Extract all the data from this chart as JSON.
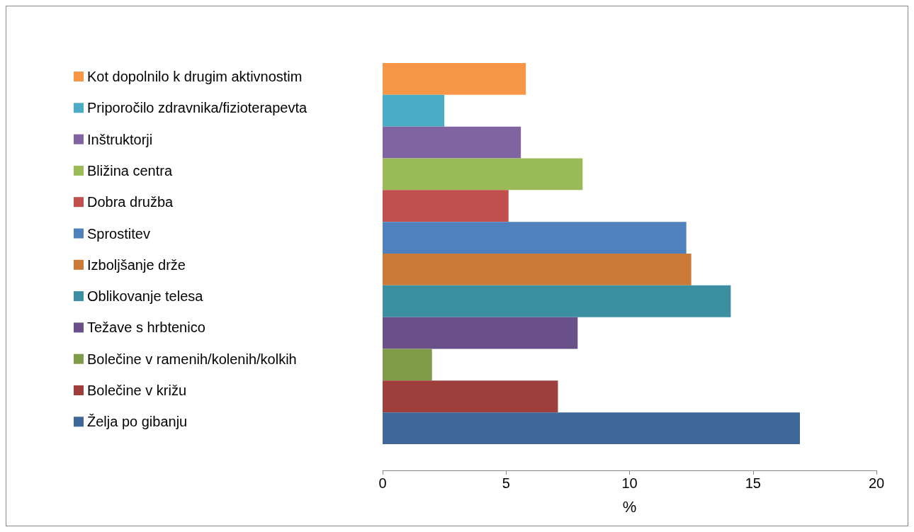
{
  "chart_data": {
    "type": "bar",
    "orientation": "horizontal",
    "xlabel": "%",
    "categories": [
      null
    ],
    "series": [
      {
        "name": "Kot dopolnilo k drugim aktivnostim",
        "color": "#f79646",
        "values": [
          5.8
        ]
      },
      {
        "name": "Priporočilo zdravnika/fizioterapevta",
        "color": "#4bacc6",
        "values": [
          2.5
        ]
      },
      {
        "name": "Inštruktorji",
        "color": "#8064a2",
        "values": [
          5.6
        ]
      },
      {
        "name": "Bližina centra",
        "color": "#9bbb59",
        "values": [
          8.1
        ]
      },
      {
        "name": "Dobra družba",
        "color": "#c0504d",
        "values": [
          5.1
        ]
      },
      {
        "name": "Sprostitev",
        "color": "#4f81bd",
        "values": [
          12.3
        ]
      },
      {
        "name": "Izboljšanje drže",
        "color": "#cc7a37",
        "values": [
          12.5
        ]
      },
      {
        "name": "Oblikovanje telesa",
        "color": "#3c8fa0",
        "values": [
          14.1
        ]
      },
      {
        "name": "Težave s hrbtenico",
        "color": "#6a5088",
        "values": [
          7.9
        ]
      },
      {
        "name": "Bolečine v ramenih/kolenih/kolkih",
        "color": "#7f9a48",
        "values": [
          2.0
        ]
      },
      {
        "name": "Bolečine v križu",
        "color": "#9e3f3d",
        "values": [
          7.1
        ]
      },
      {
        "name": "Želja po gibanju",
        "color": "#3f6797",
        "values": [
          16.9
        ]
      }
    ],
    "xlim": [
      0,
      20
    ],
    "xticks": [
      0,
      5,
      10,
      15,
      20
    ],
    "grid": false,
    "legend": "left"
  }
}
